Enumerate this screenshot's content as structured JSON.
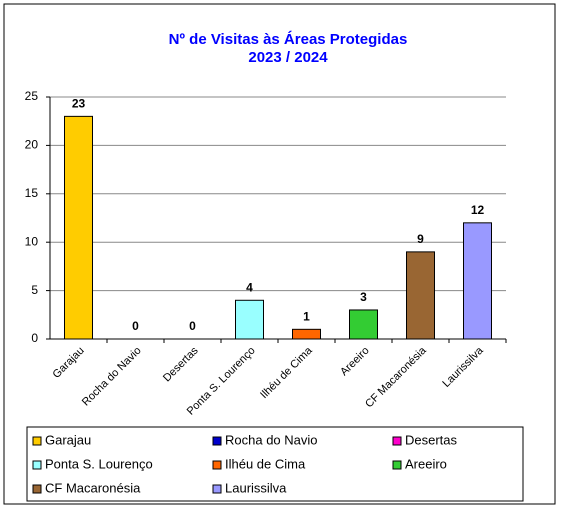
{
  "chart_data": {
    "type": "bar",
    "title": "Nº de Visitas às Áreas Protegidas",
    "subtitle": "2023 / 2024",
    "categories": [
      "Garajau",
      "Rocha do Navio",
      "Desertas",
      "Ponta S. Lourenço",
      "Ilhéu de Cima",
      "Areeiro",
      "CF Macaronésia",
      "Laurissilva"
    ],
    "values": [
      23,
      0,
      0,
      4,
      1,
      3,
      9,
      12
    ],
    "colors": [
      "#ffcc00",
      "#0000cc",
      "#ff00cc",
      "#99ffff",
      "#ff6600",
      "#33cc33",
      "#996633",
      "#9999ff"
    ],
    "ylim": [
      0,
      25
    ],
    "yticks": [
      0,
      5,
      10,
      15,
      20,
      25
    ],
    "grid": true,
    "legend": "bottom"
  }
}
